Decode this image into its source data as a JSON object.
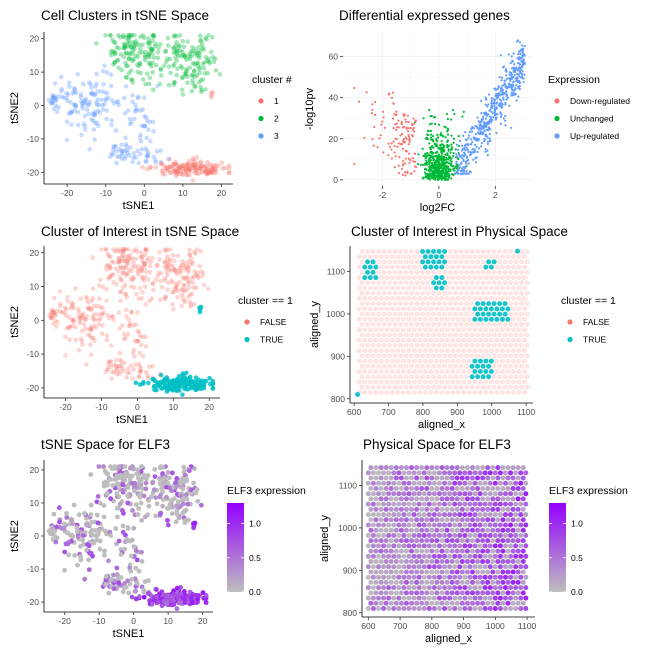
{
  "chart_data": [
    {
      "id": "p1",
      "type": "scatter",
      "title": "Cell Clusters in tSNE Space",
      "xlabel": "tSNE1",
      "ylabel": "tSNE2",
      "xlim": [
        -26,
        23
      ],
      "ylim": [
        -23.5,
        22
      ],
      "xticks": [
        -20,
        -10,
        0,
        10,
        20
      ],
      "yticks": [
        -20,
        -10,
        0,
        10,
        20
      ],
      "legend": {
        "title": "cluster #",
        "position": "right",
        "entries": [
          {
            "label": "1",
            "color": "#F8766D"
          },
          {
            "label": "2",
            "color": "#00BA38"
          },
          {
            "label": "3",
            "color": "#619CFF"
          }
        ]
      },
      "point_alpha": 0.35,
      "series": [
        {
          "name": "1",
          "color": "#F8766D",
          "approx_points": [
            [
              5,
              -19
            ],
            [
              8,
              -18
            ],
            [
              10,
              -20
            ],
            [
              12,
              -19
            ],
            [
              14,
              -18
            ],
            [
              16,
              -20
            ],
            [
              18,
              -19
            ],
            [
              20,
              -19
            ],
            [
              16,
              3
            ],
            [
              17,
              4
            ]
          ]
        },
        {
          "name": "2",
          "color": "#00BA38",
          "approx_points": [
            [
              -8,
              14
            ],
            [
              -4,
              20
            ],
            [
              -1,
              12
            ],
            [
              2,
              16
            ],
            [
              6,
              18
            ],
            [
              10,
              15
            ],
            [
              12,
              8
            ],
            [
              14,
              12
            ],
            [
              17,
              16
            ],
            [
              -14,
              3
            ]
          ]
        },
        {
          "name": "3",
          "color": "#619CFF",
          "approx_points": [
            [
              -23,
              2
            ],
            [
              -18,
              5
            ],
            [
              -15,
              -3
            ],
            [
              -12,
              -6
            ],
            [
              -8,
              4
            ],
            [
              -5,
              2
            ],
            [
              -6,
              -14
            ],
            [
              0,
              -10
            ],
            [
              2,
              -4
            ],
            [
              4,
              -15
            ]
          ]
        }
      ]
    },
    {
      "id": "p2",
      "type": "scatter",
      "title": "Differential expressed genes",
      "xlabel": "log2FC",
      "ylabel": "-log10pv",
      "xlim": [
        -3.4,
        3.3
      ],
      "ylim": [
        -3,
        72
      ],
      "xticks": [
        -2,
        0,
        2
      ],
      "yticks": [
        0,
        20,
        40,
        60
      ],
      "grid": true,
      "legend": {
        "title": "Expression",
        "position": "right",
        "entries": [
          {
            "label": "Down-regulated",
            "color": "#F8766D"
          },
          {
            "label": "Unchanged",
            "color": "#00BA38"
          },
          {
            "label": "Up-regulated",
            "color": "#619CFF"
          }
        ]
      },
      "series": [
        {
          "name": "Down-regulated",
          "color": "#F8766D",
          "approx_range": {
            "x": [
              -2.9,
              -0.8
            ],
            "y": [
              2,
              48
            ]
          }
        },
        {
          "name": "Unchanged",
          "color": "#00BA38",
          "approx_range": {
            "x": [
              -0.8,
              0.8
            ],
            "y": [
              0,
              35
            ]
          }
        },
        {
          "name": "Up-regulated",
          "color": "#619CFF",
          "approx_range": {
            "x": [
              0.5,
              3.1
            ],
            "y": [
              3,
              70
            ]
          }
        }
      ]
    },
    {
      "id": "p3",
      "type": "scatter",
      "title": "Cluster of Interest in tSNE Space",
      "xlabel": "tSNE1",
      "ylabel": "tSNE2",
      "xlim": [
        -26,
        23
      ],
      "ylim": [
        -23,
        22
      ],
      "xticks": [
        -20,
        -10,
        0,
        10,
        20
      ],
      "yticks": [
        -20,
        -10,
        0,
        10,
        20
      ],
      "legend": {
        "title": "cluster == 1",
        "position": "right",
        "entries": [
          {
            "label": "FALSE",
            "color": "#F8766D"
          },
          {
            "label": "TRUE",
            "color": "#00BFC4"
          }
        ]
      },
      "series": [
        {
          "name": "FALSE",
          "color": "#F8766D",
          "alpha": 0.3
        },
        {
          "name": "TRUE",
          "color": "#00BFC4",
          "alpha": 0.85
        }
      ]
    },
    {
      "id": "p4",
      "type": "scatter",
      "title": "Cluster of Interest in Physical Space",
      "xlabel": "aligned_x",
      "ylabel": "aligned_y",
      "xlim": [
        588,
        1120
      ],
      "ylim": [
        790,
        1160
      ],
      "xticks": [
        600,
        700,
        800,
        900,
        1000,
        1100
      ],
      "yticks": [
        800,
        900,
        1000,
        1100
      ],
      "legend": {
        "title": "cluster == 1",
        "position": "right",
        "entries": [
          {
            "label": "FALSE",
            "color": "#F8766D"
          },
          {
            "label": "TRUE",
            "color": "#00BFC4"
          }
        ]
      },
      "grid_spots": {
        "x_start": 615,
        "x_end": 1105,
        "x_step": 16,
        "y_start": 815,
        "y_end": 1148,
        "y_step": 12.3
      },
      "true_regions": [
        {
          "x": [
            625,
            665
          ],
          "y": [
            1085,
            1125
          ]
        },
        {
          "x": [
            795,
            870
          ],
          "y": [
            1105,
            1150
          ]
        },
        {
          "x": [
            825,
            870
          ],
          "y": [
            1050,
            1090
          ]
        },
        {
          "x": [
            980,
            1010
          ],
          "y": [
            1100,
            1130
          ]
        },
        {
          "x": [
            945,
            1050
          ],
          "y": [
            985,
            1035
          ]
        },
        {
          "x": [
            940,
            1000
          ],
          "y": [
            850,
            890
          ]
        }
      ]
    },
    {
      "id": "p5",
      "type": "scatter",
      "title": "tSNE Space for ELF3",
      "xlabel": "tSNE1",
      "ylabel": "tSNE2",
      "xlim": [
        -26,
        23
      ],
      "ylim": [
        -23,
        23
      ],
      "xticks": [
        -20,
        -10,
        0,
        10,
        20
      ],
      "yticks": [
        -20,
        -10,
        0,
        10,
        20
      ],
      "legend": {
        "title": "ELF3 expression",
        "position": "right",
        "type": "gradient",
        "low": "#bebebe",
        "high": "#9400ff",
        "breaks": [
          0.0,
          0.5,
          1.0
        ],
        "range": [
          0,
          1.3
        ]
      }
    },
    {
      "id": "p6",
      "type": "scatter",
      "title": "Physical Space for ELF3",
      "xlabel": "aligned_x",
      "ylabel": "aligned_y",
      "xlim": [
        580,
        1125
      ],
      "ylim": [
        790,
        1160
      ],
      "xticks": [
        600,
        700,
        800,
        900,
        1000,
        1100
      ],
      "yticks": [
        800,
        900,
        1000,
        1100
      ],
      "legend": {
        "title": "ELF3 expression",
        "position": "right",
        "type": "gradient",
        "low": "#bebebe",
        "high": "#9400ff",
        "breaks": [
          0.0,
          0.5,
          1.0
        ],
        "range": [
          0,
          1.3
        ]
      }
    }
  ]
}
